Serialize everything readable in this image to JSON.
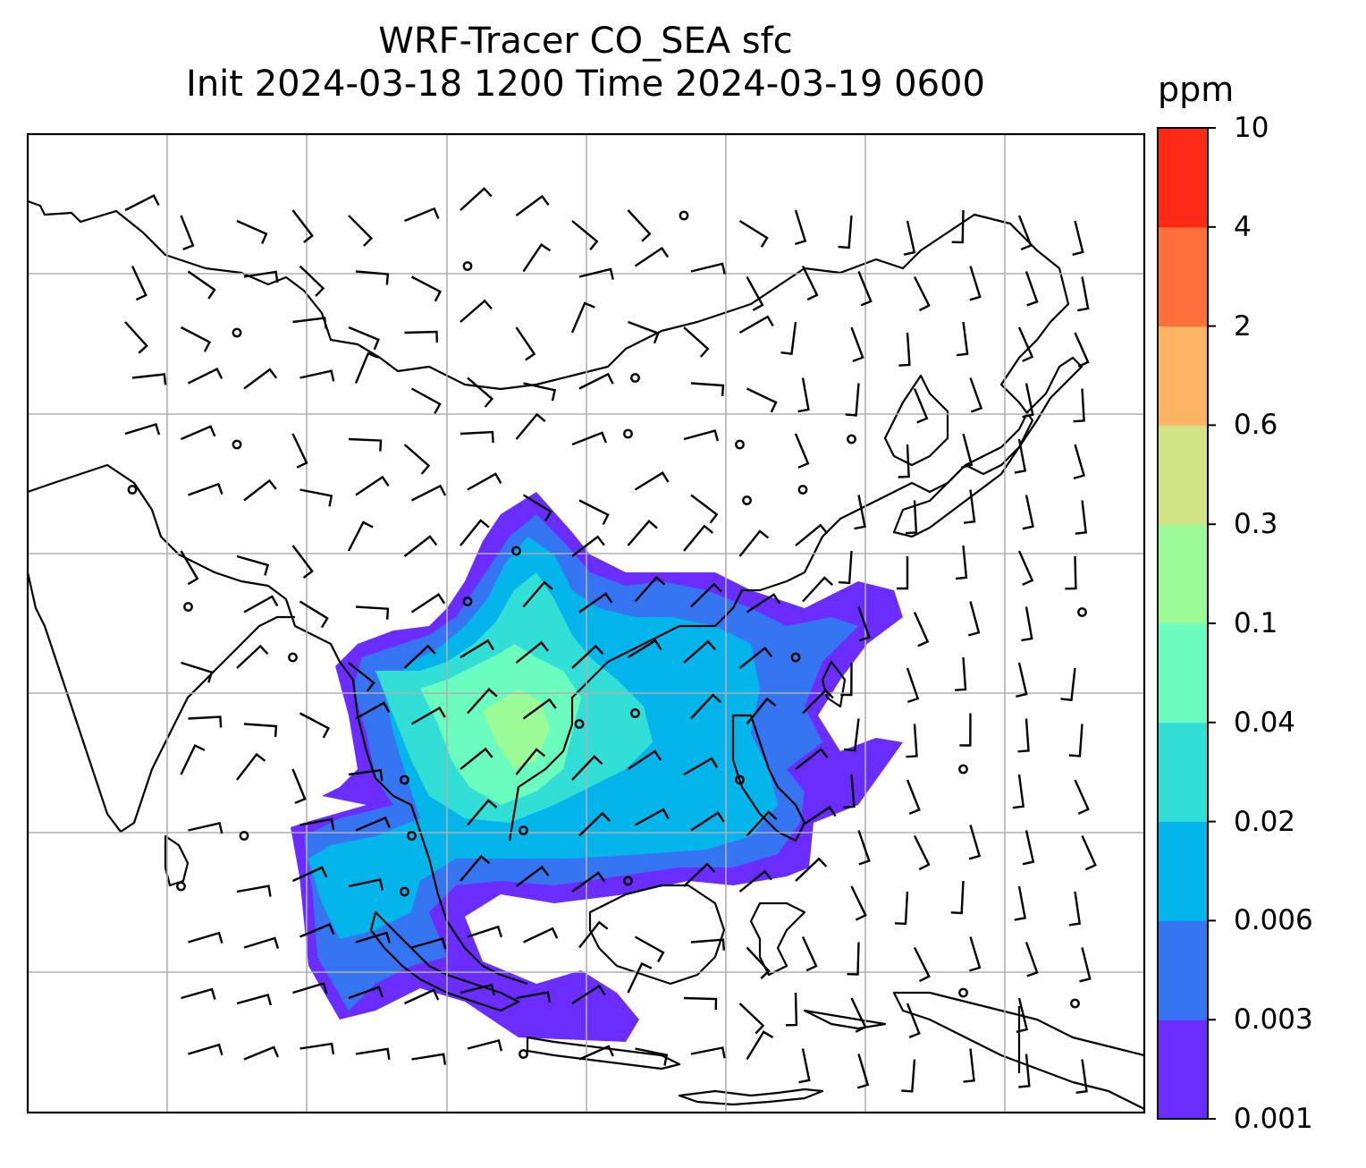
{
  "title": {
    "line1": "WRF-Tracer CO_SEA sfc",
    "line2": "Init 2024-03-18 1200 Time 2024-03-19 0600"
  },
  "colorbar": {
    "unit": "ppm",
    "ticks": [
      "0.001",
      "0.003",
      "0.006",
      "0.02",
      "0.04",
      "0.1",
      "0.3",
      "0.6",
      "2",
      "4",
      "10"
    ],
    "colors": [
      "#6a2cff",
      "#3575f2",
      "#03b5eb",
      "#31dfd6",
      "#6bfcc0",
      "#9bfb96",
      "#d1e385",
      "#fdb464",
      "#ff6f3c",
      "#fe2a17"
    ]
  },
  "map": {
    "region": "Southeast Asia / East Asia",
    "gridlines": true,
    "coastlines": true,
    "wind_barbs": true
  }
}
